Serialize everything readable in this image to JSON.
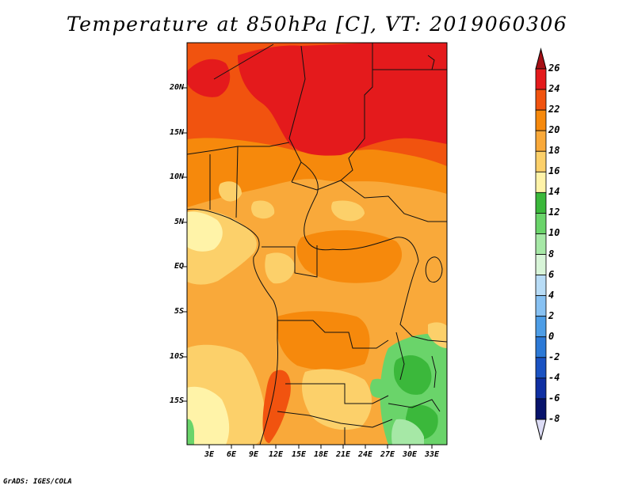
{
  "title": "Temperature at 850hPa [C], VT: 2019060306",
  "credit": "GrADS: IGES/COLA",
  "map": {
    "projection": "latlon",
    "lat_range": [
      -20,
      25
    ],
    "lon_range": [
      0,
      35
    ],
    "lat_labels": [
      "20N",
      "15N",
      "10N",
      "5N",
      "EQ",
      "5S",
      "10S",
      "15S"
    ],
    "lon_labels": [
      "3E",
      "6E",
      "9E",
      "12E",
      "15E",
      "18E",
      "21E",
      "24E",
      "27E",
      "30E",
      "33E"
    ]
  },
  "colorbar": {
    "labels": [
      "26",
      "24",
      "22",
      "20",
      "18",
      "16",
      "14",
      "12",
      "10",
      "8",
      "6",
      "4",
      "2",
      "0",
      "-2",
      "-4",
      "-6",
      "-8"
    ],
    "colors": [
      "#a50f15",
      "#e41a1c",
      "#f1530f",
      "#f6890c",
      "#f9a93a",
      "#fcd06a",
      "#fff3a8",
      "#3bb83b",
      "#6ad46a",
      "#a6e8a6",
      "#d8f5d8",
      "#b8dcf6",
      "#87c1f2",
      "#4d9de6",
      "#2c79d6",
      "#1a52c2",
      "#0f2fa2",
      "#07136b",
      "#dcdcf5"
    ],
    "under_color": "#dcdcf5",
    "over_color": "#a50f15"
  },
  "regions": {
    "sahara_hot": "#e41a1c",
    "north_warm": "#f1530f",
    "sahel": "#f6890c",
    "central": "#f9a93a",
    "cool_coast": "#fcd06a",
    "pale": "#fff3a8",
    "green_dark": "#3bb83b",
    "green_mid": "#6ad46a",
    "green_light": "#a6e8a6"
  }
}
